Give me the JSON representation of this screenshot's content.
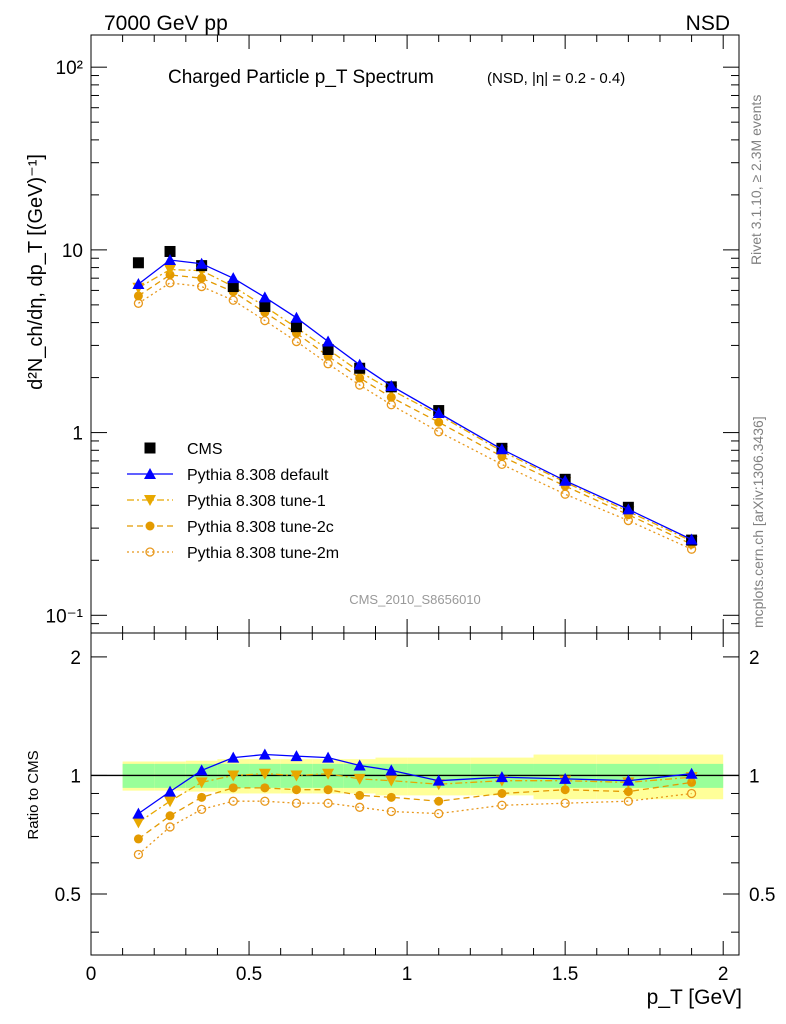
{
  "header": {
    "left": "7000 GeV pp",
    "right": "NSD"
  },
  "side_labels": {
    "rivet": "Rivet 3.1.10, ≥ 2.3M events",
    "mcplots": "mcplots.cern.ch [arXiv:1306.3436]"
  },
  "watermark": "CMS_2010_S8656010",
  "colors": {
    "cms": "#000000",
    "default": "#0000ff",
    "tune1": "#e8a800",
    "tune2c": "#e39a00",
    "tune2m": "#e8981c",
    "band_inner": "#99ff99",
    "band_outer": "#ffff99"
  },
  "chart_data": [
    {
      "type": "scatter",
      "panel": "main",
      "title": "Charged Particle p_T Spectrum",
      "subtitle": "(NSD, |η| = 0.2 - 0.4)",
      "ylabel": "d²N_ch/dη, dp_T [(GeV)⁻¹]",
      "yscale": "log",
      "ylim": [
        0.08,
        150
      ],
      "xlim": [
        0,
        2.05
      ],
      "y_ticks": [
        "10⁻¹",
        "1",
        "10",
        "10²"
      ],
      "legend_position": "lower-left",
      "x": [
        0.15,
        0.25,
        0.35,
        0.45,
        0.55,
        0.65,
        0.75,
        0.85,
        0.95,
        1.1,
        1.3,
        1.5,
        1.7,
        1.9
      ],
      "series": [
        {
          "name": "CMS",
          "key": "cms",
          "marker": "square",
          "values": [
            8.5,
            9.8,
            8.2,
            6.3,
            4.9,
            3.8,
            2.85,
            2.25,
            1.78,
            1.32,
            0.82,
            0.555,
            0.39,
            0.258
          ]
        },
        {
          "name": "Pythia 8.308 default",
          "key": "default",
          "marker": "triangle-up",
          "values": [
            6.5,
            8.8,
            8.4,
            7.0,
            5.5,
            4.25,
            3.15,
            2.35,
            1.8,
            1.28,
            0.81,
            0.545,
            0.38,
            0.26
          ]
        },
        {
          "name": "Pythia 8.308 tune-1",
          "key": "tune1",
          "marker": "triangle-down",
          "values": [
            6.2,
            7.8,
            7.7,
            6.3,
            4.9,
            3.75,
            2.85,
            2.15,
            1.71,
            1.25,
            0.79,
            0.535,
            0.37,
            0.255
          ]
        },
        {
          "name": "Pythia 8.308 tune-2c",
          "key": "tune2c",
          "marker": "circle",
          "values": [
            5.6,
            7.3,
            7.0,
            5.9,
            4.55,
            3.5,
            2.62,
            1.99,
            1.56,
            1.14,
            0.74,
            0.51,
            0.355,
            0.245
          ]
        },
        {
          "name": "Pythia 8.308 tune-2m",
          "key": "tune2m",
          "marker": "circle-open",
          "values": [
            5.1,
            6.6,
            6.3,
            5.3,
            4.1,
            3.15,
            2.38,
            1.82,
            1.42,
            1.01,
            0.67,
            0.46,
            0.33,
            0.23
          ]
        }
      ]
    },
    {
      "type": "line",
      "panel": "ratio",
      "ylabel": "Ratio to CMS",
      "xlabel": "p_T [GeV]",
      "ylim": [
        0.35,
        2.3
      ],
      "xlim": [
        0,
        2.05
      ],
      "x_ticks": [
        "0",
        "0.5",
        "1",
        "1.5",
        "2"
      ],
      "y_ticks": [
        "0.5",
        "1",
        "2"
      ],
      "x": [
        0.15,
        0.25,
        0.35,
        0.45,
        0.55,
        0.65,
        0.75,
        0.85,
        0.95,
        1.1,
        1.3,
        1.5,
        1.7,
        1.9
      ],
      "bands": [
        {
          "x_edges": [
            0.1,
            0.2,
            0.3,
            0.4,
            0.5,
            0.6,
            0.7,
            0.8,
            0.9,
            1.0,
            1.2,
            1.4,
            1.6,
            1.8,
            2.0
          ],
          "inner": [
            0.07,
            0.07,
            0.07,
            0.07,
            0.07,
            0.07,
            0.07,
            0.07,
            0.07,
            0.07,
            0.07,
            0.07,
            0.07,
            0.07
          ],
          "outer": [
            0.085,
            0.085,
            0.09,
            0.1,
            0.1,
            0.1,
            0.1,
            0.1,
            0.11,
            0.11,
            0.11,
            0.13,
            0.13,
            0.13
          ]
        }
      ],
      "series": [
        {
          "name": "Pythia 8.308 default",
          "key": "default",
          "marker": "triangle-up",
          "values": [
            0.8,
            0.91,
            1.03,
            1.11,
            1.13,
            1.12,
            1.11,
            1.06,
            1.03,
            0.97,
            0.99,
            0.98,
            0.97,
            1.01
          ]
        },
        {
          "name": "Pythia 8.308 tune-1",
          "key": "tune1",
          "marker": "triangle-down",
          "values": [
            0.76,
            0.86,
            0.96,
            1.0,
            1.01,
            1.0,
            1.01,
            0.98,
            0.97,
            0.95,
            0.97,
            0.97,
            0.96,
            0.99
          ]
        },
        {
          "name": "Pythia 8.308 tune-2c",
          "key": "tune2c",
          "marker": "circle",
          "values": [
            0.69,
            0.79,
            0.88,
            0.93,
            0.93,
            0.92,
            0.92,
            0.89,
            0.88,
            0.86,
            0.9,
            0.92,
            0.91,
            0.96
          ]
        },
        {
          "name": "Pythia 8.308 tune-2m",
          "key": "tune2m",
          "marker": "circle-open",
          "values": [
            0.63,
            0.74,
            0.82,
            0.86,
            0.86,
            0.85,
            0.85,
            0.83,
            0.81,
            0.8,
            0.84,
            0.85,
            0.86,
            0.9
          ]
        }
      ]
    }
  ]
}
